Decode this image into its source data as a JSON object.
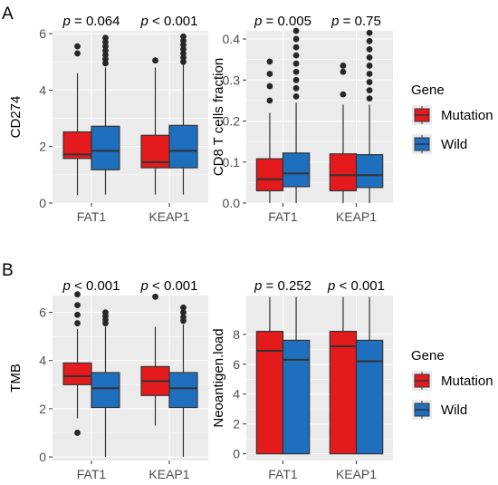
{
  "panel_labels": [
    "A",
    "B"
  ],
  "chart_data": [
    {
      "type": "boxplot",
      "panel": "A",
      "categories": [
        "FAT1",
        "KEAP1"
      ],
      "ylabel": "CD274",
      "ylim": [
        0,
        6.1
      ],
      "yticks": [
        0,
        2,
        4,
        6
      ],
      "ytick_labels": [
        "0",
        "2",
        "4",
        "6"
      ],
      "pvalues": [
        "p = 0.064",
        "p < 0.001"
      ],
      "grid": true,
      "legend": "none",
      "series": [
        {
          "name": "Mutation",
          "boxes": [
            {
              "q1": 1.58,
              "median": 1.72,
              "q3": 2.52,
              "lower": 0.28,
              "upper": 4.6,
              "outliers": [
                5.3,
                5.55
              ]
            },
            {
              "q1": 1.25,
              "median": 1.45,
              "q3": 2.4,
              "lower": 0.3,
              "upper": 4.8,
              "outliers": [
                5.05
              ]
            }
          ]
        },
        {
          "name": "Wild",
          "boxes": [
            {
              "q1": 1.18,
              "median": 1.85,
              "q3": 2.72,
              "lower": 0.3,
              "upper": 4.8,
              "outliers": [
                4.95,
                5.1,
                5.25,
                5.4,
                5.55,
                5.7,
                5.85
              ]
            },
            {
              "q1": 1.25,
              "median": 1.85,
              "q3": 2.75,
              "lower": 0.3,
              "upper": 4.9,
              "outliers": [
                5.0,
                5.15,
                5.3,
                5.45,
                5.6,
                5.75,
                5.9
              ]
            }
          ]
        }
      ]
    },
    {
      "type": "boxplot",
      "panel": "A",
      "categories": [
        "FAT1",
        "KEAP1"
      ],
      "ylabel": "CD8 T cells fraction",
      "ylim": [
        0,
        0.42
      ],
      "yticks": [
        0,
        0.1,
        0.2,
        0.3,
        0.4
      ],
      "ytick_labels": [
        "0.0",
        "0.1",
        "0.2",
        "0.3",
        "0.4"
      ],
      "pvalues": [
        "p = 0.005",
        "p = 0.75"
      ],
      "grid": true,
      "legend": "right",
      "series": [
        {
          "name": "Mutation",
          "boxes": [
            {
              "q1": 0.03,
              "median": 0.058,
              "q3": 0.108,
              "lower": 0.0,
              "upper": 0.22,
              "outliers": [
                0.25,
                0.285,
                0.315,
                0.345
              ]
            },
            {
              "q1": 0.03,
              "median": 0.068,
              "q3": 0.12,
              "lower": 0.0,
              "upper": 0.24,
              "outliers": [
                0.265,
                0.32,
                0.335
              ]
            }
          ]
        },
        {
          "name": "Wild",
          "boxes": [
            {
              "q1": 0.04,
              "median": 0.072,
              "q3": 0.122,
              "lower": 0.0,
              "upper": 0.245,
              "outliers": [
                0.26,
                0.28,
                0.3,
                0.32,
                0.34,
                0.36,
                0.38,
                0.4,
                0.42
              ]
            },
            {
              "q1": 0.038,
              "median": 0.068,
              "q3": 0.118,
              "lower": 0.0,
              "upper": 0.24,
              "outliers": [
                0.255,
                0.275,
                0.295,
                0.315,
                0.335,
                0.355,
                0.375,
                0.395,
                0.415
              ]
            }
          ]
        }
      ]
    },
    {
      "type": "boxplot",
      "panel": "B",
      "categories": [
        "FAT1",
        "KEAP1"
      ],
      "ylabel": "TMB",
      "ylim": [
        -0.15,
        6.7
      ],
      "yticks": [
        0,
        2,
        4,
        6
      ],
      "ytick_labels": [
        "0",
        "2",
        "4",
        "6"
      ],
      "pvalues": [
        "p < 0.001",
        "p < 0.001"
      ],
      "grid": true,
      "legend": "none",
      "series": [
        {
          "name": "Mutation",
          "boxes": [
            {
              "q1": 3.0,
              "median": 3.35,
              "q3": 3.9,
              "lower": 1.6,
              "upper": 5.3,
              "outliers": [
                1.0,
                5.55,
                5.9,
                6.3,
                6.75
              ]
            },
            {
              "q1": 2.55,
              "median": 3.15,
              "q3": 3.75,
              "lower": 1.3,
              "upper": 5.4,
              "outliers": [
                6.65
              ]
            }
          ]
        },
        {
          "name": "Wild",
          "boxes": [
            {
              "q1": 2.05,
              "median": 2.85,
              "q3": 3.5,
              "lower": 0.0,
              "upper": 5.4,
              "outliers": [
                5.55,
                5.7,
                5.85,
                6.0
              ]
            },
            {
              "q1": 2.05,
              "median": 2.85,
              "q3": 3.5,
              "lower": 0.0,
              "upper": 5.5,
              "outliers": [
                5.65,
                5.8,
                6.0,
                6.2
              ]
            }
          ]
        }
      ]
    },
    {
      "type": "boxplot",
      "panel": "B",
      "categories": [
        "FAT1",
        "KEAP1"
      ],
      "ylabel": "Neoantigen.load",
      "ylim": [
        -0.45,
        10.6
      ],
      "yticks": [
        0,
        2,
        4,
        6,
        8
      ],
      "ytick_labels": [
        "0",
        "2",
        "4",
        "6",
        "8"
      ],
      "pvalues": [
        "p = 0.252",
        "p < 0.001"
      ],
      "grid": true,
      "legend": "right",
      "series": [
        {
          "name": "Mutation",
          "boxes": [
            {
              "q1": 0.0,
              "median": 6.9,
              "q3": 8.2,
              "lower": 0.0,
              "upper": 10.5,
              "outliers": []
            },
            {
              "q1": 0.0,
              "median": 7.2,
              "q3": 8.2,
              "lower": 0.0,
              "upper": 10.5,
              "outliers": []
            }
          ]
        },
        {
          "name": "Wild",
          "boxes": [
            {
              "q1": 0.0,
              "median": 6.3,
              "q3": 7.6,
              "lower": 0.0,
              "upper": 10.5,
              "outliers": []
            },
            {
              "q1": 0.0,
              "median": 6.2,
              "q3": 7.6,
              "lower": 0.0,
              "upper": 10.5,
              "outliers": []
            }
          ]
        }
      ]
    }
  ],
  "legend": {
    "title": "Gene",
    "items": [
      {
        "label": "Mutation",
        "color": "#e41a1c"
      },
      {
        "label": "Wild",
        "color": "#1f6fbf"
      }
    ]
  },
  "colors": {
    "mutation": "#e41a1c",
    "wild": "#1f6fbf",
    "panel_bg": "#ebebeb",
    "grid": "#ffffff",
    "text": "#4d4d4d",
    "outline": "#333333"
  }
}
